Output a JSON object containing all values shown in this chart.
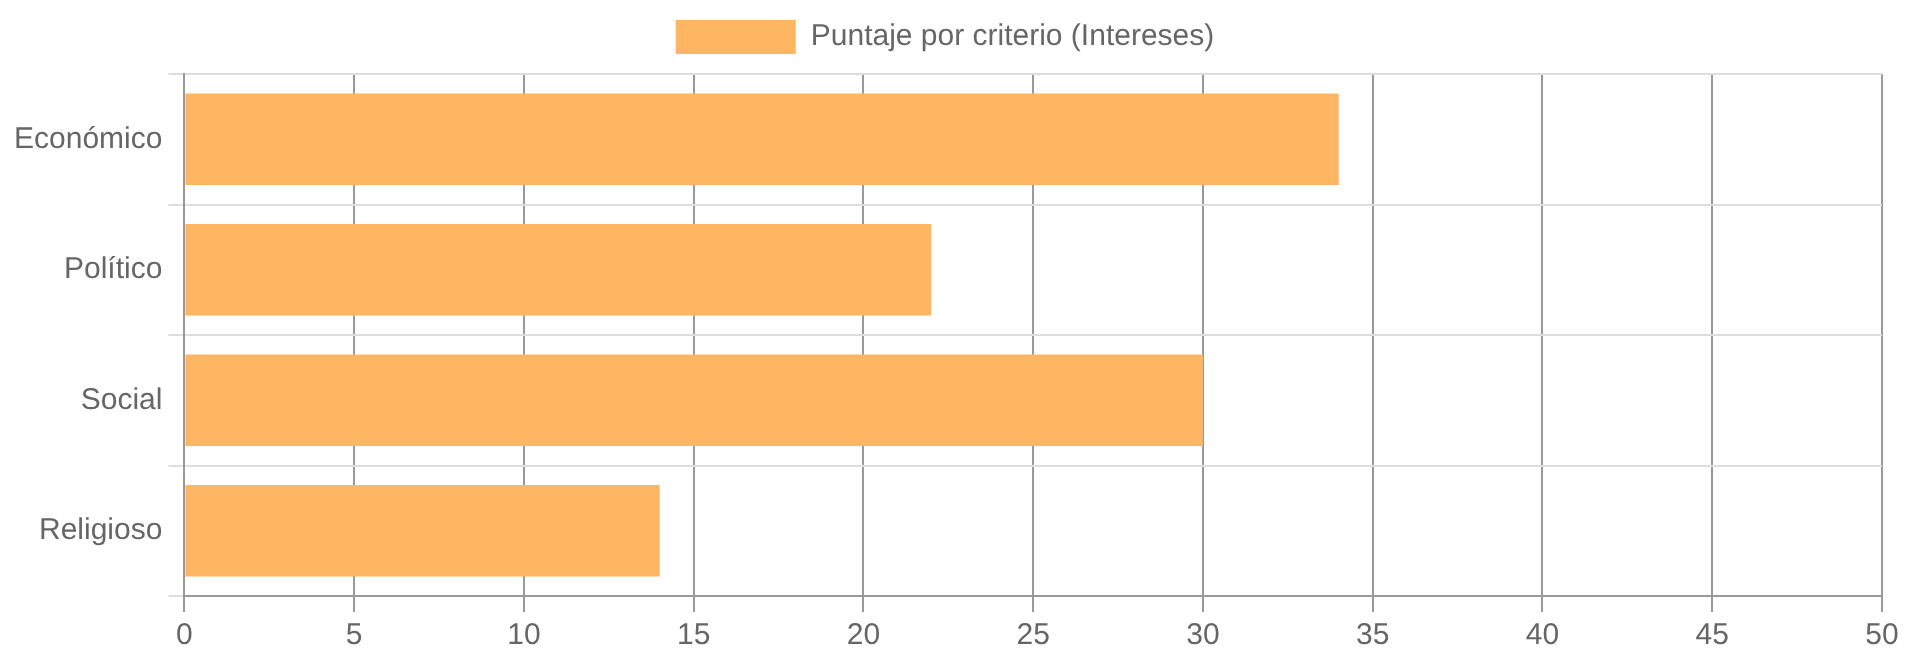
{
  "chart_data": {
    "type": "bar",
    "orientation": "horizontal",
    "categories": [
      "Económico",
      "Político",
      "Social",
      "Religioso"
    ],
    "series": [
      {
        "name": "Puntaje por criterio (Intereses)",
        "color": "#ffb662",
        "values": [
          34,
          22,
          30,
          14
        ]
      }
    ],
    "xlim": [
      0,
      50
    ],
    "xticks": [
      0,
      5,
      10,
      15,
      20,
      25,
      30,
      35,
      40,
      45,
      50
    ],
    "grid": true,
    "legend": "top"
  }
}
